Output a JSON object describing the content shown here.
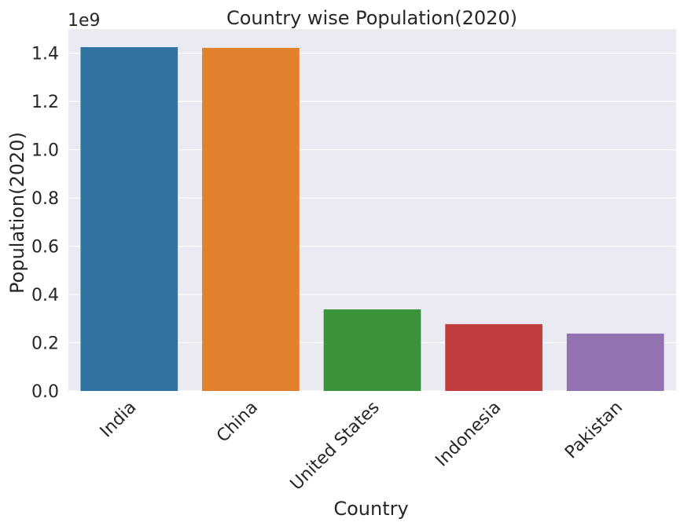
{
  "chart_data": {
    "type": "bar",
    "title": "Country wise Population(2020)",
    "xlabel": "Country",
    "ylabel": "Population(2020)",
    "y_multiplier_label": "1e9",
    "categories": [
      "India",
      "China",
      "United States",
      "Indonesia",
      "Pakistan"
    ],
    "values": [
      1425000000,
      1422000000,
      338000000,
      277000000,
      238000000
    ],
    "colors": [
      "#3274a1",
      "#e1812c",
      "#3a923a",
      "#c03d3e",
      "#9372b2"
    ],
    "ylim": [
      0,
      1500000000
    ],
    "yticks": [
      0,
      200000000,
      400000000,
      600000000,
      800000000,
      1000000000,
      1200000000,
      1400000000
    ],
    "ytick_labels": [
      "0.0",
      "0.2",
      "0.4",
      "0.6",
      "0.8",
      "1.0",
      "1.2",
      "1.4"
    ],
    "grid": true,
    "background": "#eaeaf2",
    "xtick_rotation": 45
  }
}
